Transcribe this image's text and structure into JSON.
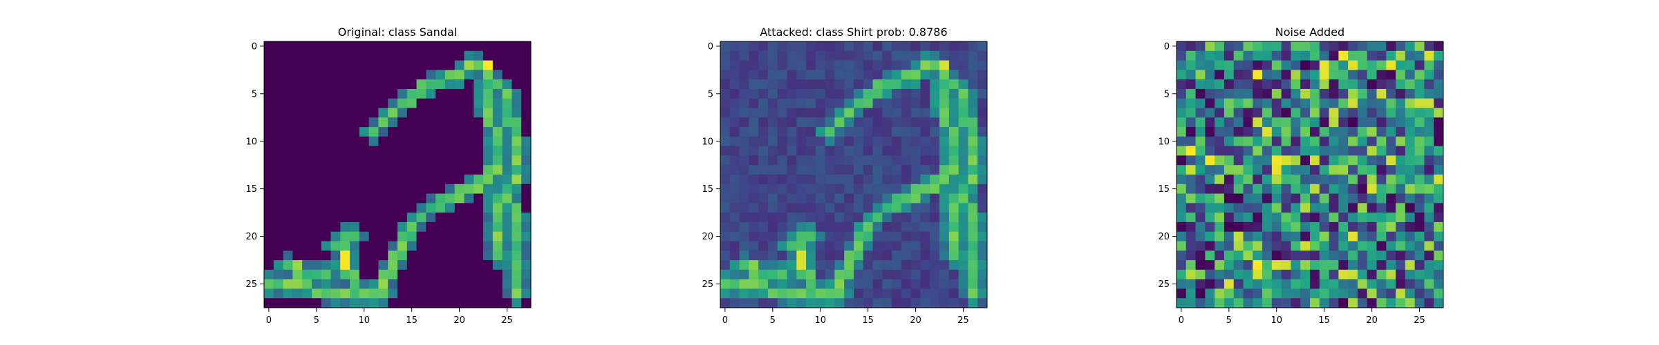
{
  "chart_data": [
    {
      "type": "heatmap",
      "title": "Original: class Sandal",
      "xlim": [
        -0.5,
        27.5
      ],
      "ylim": [
        27.5,
        -0.5
      ],
      "xticks": [
        0,
        5,
        10,
        15,
        20,
        25
      ],
      "yticks": [
        0,
        5,
        10,
        15,
        20,
        25
      ],
      "colormap": "viridis",
      "grid": false
    },
    {
      "type": "heatmap",
      "title": "Attacked: class Shirt prob: 0.8786",
      "xlim": [
        -0.5,
        27.5
      ],
      "ylim": [
        27.5,
        -0.5
      ],
      "xticks": [
        0,
        5,
        10,
        15,
        20,
        25
      ],
      "yticks": [
        0,
        5,
        10,
        15,
        20,
        25
      ],
      "colormap": "viridis",
      "grid": false
    },
    {
      "type": "heatmap",
      "title": "Noise Added",
      "xlim": [
        -0.5,
        27.5
      ],
      "ylim": [
        27.5,
        -0.5
      ],
      "xticks": [
        0,
        5,
        10,
        15,
        20,
        25
      ],
      "yticks": [
        0,
        5,
        10,
        15,
        20,
        25
      ],
      "colormap": "viridis",
      "grid": false
    }
  ],
  "colors": {
    "viridis_low": "#440154",
    "viridis_high": "#fde725"
  }
}
